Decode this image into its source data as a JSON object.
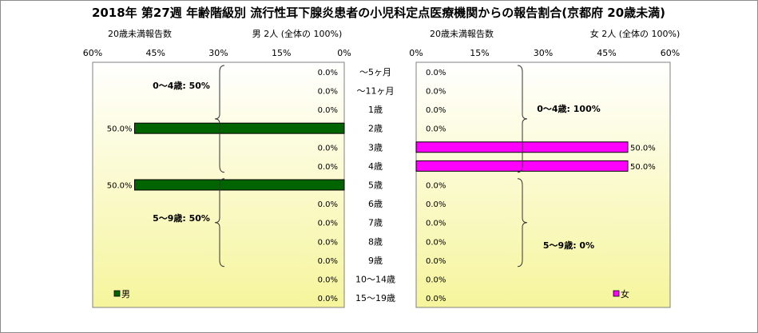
{
  "chart_data": {
    "type": "bar",
    "title": "2018年 第27週 年齢階級別 流行性耳下腺炎患者の小児科定点医療機関からの報告割合(京都府 20歳未満)",
    "categories": [
      "～5ヶ月",
      "～11ヶ月",
      "1歳",
      "2歳",
      "3歳",
      "4歳",
      "5歳",
      "6歳",
      "7歳",
      "8歳",
      "9歳",
      "10～14歳",
      "15～19歳"
    ],
    "xlim": [
      0,
      60
    ],
    "ticks": [
      "60%",
      "45%",
      "30%",
      "15%",
      "0%"
    ],
    "ticks_right": [
      "0%",
      "15%",
      "30%",
      "45%",
      "60%"
    ],
    "tick_values": [
      0,
      15,
      30,
      45,
      60
    ],
    "panels": [
      {
        "side": "left",
        "caption": "20歳未満報告数",
        "header": "男 2人 (全体の 100%)",
        "legend": "男",
        "color": "#006400",
        "values": [
          0,
          0,
          0,
          50,
          0,
          0,
          50,
          0,
          0,
          0,
          0,
          0,
          0
        ],
        "value_labels": [
          "0.0%",
          "0.0%",
          "0.0%",
          "50.0%",
          "0.0%",
          "0.0%",
          "50.0%",
          "0.0%",
          "0.0%",
          "0.0%",
          "0.0%",
          "0.0%",
          "0.0%"
        ],
        "annotations": [
          "0～4歳: 50%",
          "5～9歳: 50%"
        ]
      },
      {
        "side": "right",
        "caption": "20歳未満報告数",
        "header": "女 2人 (全体の 100%)",
        "legend": "女",
        "color": "#ff00ff",
        "values": [
          0,
          0,
          0,
          0,
          50,
          50,
          0,
          0,
          0,
          0,
          0,
          0,
          0
        ],
        "value_labels": [
          "0.0%",
          "0.0%",
          "0.0%",
          "0.0%",
          "50.0%",
          "50.0%",
          "0.0%",
          "0.0%",
          "0.0%",
          "0.0%",
          "0.0%",
          "0.0%",
          "0.0%"
        ],
        "annotations": [
          "0～4歳: 100%",
          "5～9歳: 0%"
        ]
      }
    ]
  }
}
